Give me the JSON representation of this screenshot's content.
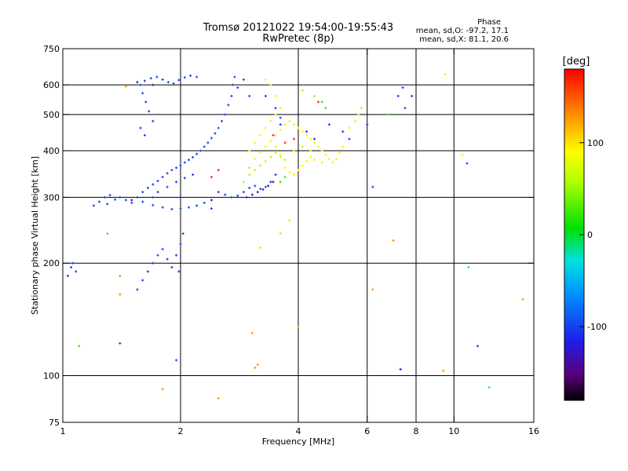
{
  "header": {
    "title_line1": "Tromsø 20121022 19:54:00-19:55:43",
    "title_line2": "RwPretec (8p)",
    "stats_title": "Phase",
    "stats_o": "mean, sd,O: -97.2, 17.1",
    "stats_x": "mean, sd,X:  81.1, 20.6"
  },
  "colorbar": {
    "unit_label": "[deg]",
    "ticks": [
      {
        "label": "100",
        "value": 100
      },
      {
        "label": "0",
        "value": 0
      },
      {
        "label": "-100",
        "value": -100
      }
    ],
    "range": [
      -180,
      180
    ]
  },
  "chart_data": {
    "type": "scatter",
    "xlabel": "Frequency [MHz]",
    "ylabel": "Stationary phase Virtual Height [km]",
    "xscale": "log",
    "yscale": "log",
    "xlim": [
      1,
      16
    ],
    "ylim": [
      75,
      750
    ],
    "x_ticks": [
      {
        "value": 1,
        "label": "1"
      },
      {
        "value": 2,
        "label": "2"
      },
      {
        "value": 4,
        "label": "4"
      },
      {
        "value": 6,
        "label": "6"
      },
      {
        "value": 8,
        "label": "8"
      },
      {
        "value": 10,
        "label": "10"
      },
      {
        "value": 16,
        "label": "16"
      }
    ],
    "y_ticks": [
      {
        "value": 75,
        "label": "75"
      },
      {
        "value": 100,
        "label": "100"
      },
      {
        "value": 200,
        "label": "200"
      },
      {
        "value": 300,
        "label": "300"
      },
      {
        "value": 400,
        "label": "400"
      },
      {
        "value": 500,
        "label": "500"
      },
      {
        "value": 600,
        "label": "600"
      },
      {
        "value": 750,
        "label": "750"
      }
    ],
    "x_grid": [
      2,
      4,
      6,
      8,
      10
    ],
    "y_grid": [
      100,
      200,
      300,
      400,
      500,
      600
    ],
    "series": [
      {
        "phase": -100,
        "points": [
          [
            1.05,
            195
          ],
          [
            1.08,
            190
          ],
          [
            1.03,
            185
          ],
          [
            1.06,
            200
          ],
          [
            1.2,
            285
          ],
          [
            1.24,
            292
          ],
          [
            1.28,
            300
          ],
          [
            1.32,
            304
          ],
          [
            1.36,
            296
          ],
          [
            1.3,
            288
          ],
          [
            1.4,
            300
          ],
          [
            1.45,
            295
          ],
          [
            1.5,
            290
          ],
          [
            1.55,
            300
          ],
          [
            1.6,
            310
          ],
          [
            1.65,
            318
          ],
          [
            1.7,
            325
          ],
          [
            1.75,
            332
          ],
          [
            1.8,
            340
          ],
          [
            1.85,
            348
          ],
          [
            1.9,
            355
          ],
          [
            1.95,
            360
          ],
          [
            2.0,
            365
          ],
          [
            2.05,
            372
          ],
          [
            2.1,
            378
          ],
          [
            2.15,
            384
          ],
          [
            2.2,
            392
          ],
          [
            2.25,
            400
          ],
          [
            2.3,
            410
          ],
          [
            2.35,
            420
          ],
          [
            2.4,
            432
          ],
          [
            2.45,
            445
          ],
          [
            2.5,
            460
          ],
          [
            2.55,
            480
          ],
          [
            2.6,
            500
          ],
          [
            2.65,
            530
          ],
          [
            2.7,
            560
          ],
          [
            2.72,
            600
          ],
          [
            2.75,
            630
          ],
          [
            2.3,
            290
          ],
          [
            2.2,
            285
          ],
          [
            2.1,
            282
          ],
          [
            2.0,
            280
          ],
          [
            1.9,
            279
          ],
          [
            1.8,
            282
          ],
          [
            1.7,
            286
          ],
          [
            1.6,
            292
          ],
          [
            1.55,
            170
          ],
          [
            1.6,
            180
          ],
          [
            1.65,
            190
          ],
          [
            1.7,
            200
          ],
          [
            1.75,
            210
          ],
          [
            1.8,
            218
          ],
          [
            1.85,
            205
          ],
          [
            1.9,
            195
          ],
          [
            1.95,
            210
          ],
          [
            2.0,
            225
          ],
          [
            2.03,
            240
          ],
          [
            1.98,
            190
          ],
          [
            1.58,
            600
          ],
          [
            1.62,
            615
          ],
          [
            1.68,
            625
          ],
          [
            1.74,
            630
          ],
          [
            1.8,
            620
          ],
          [
            1.86,
            610
          ],
          [
            1.92,
            605
          ],
          [
            1.98,
            618
          ],
          [
            2.05,
            628
          ],
          [
            2.12,
            635
          ],
          [
            2.2,
            630
          ],
          [
            1.6,
            570
          ],
          [
            1.63,
            540
          ],
          [
            1.66,
            510
          ],
          [
            1.7,
            480
          ],
          [
            1.58,
            460
          ],
          [
            1.62,
            440
          ],
          [
            1.7,
            300
          ],
          [
            1.75,
            310
          ],
          [
            1.85,
            320
          ],
          [
            1.95,
            330
          ],
          [
            2.05,
            338
          ],
          [
            2.15,
            345
          ],
          [
            2.5,
            310
          ],
          [
            2.6,
            305
          ],
          [
            2.7,
            300
          ],
          [
            2.8,
            303
          ],
          [
            2.9,
            310
          ],
          [
            3.0,
            318
          ],
          [
            3.1,
            322
          ],
          [
            3.2,
            316
          ],
          [
            3.3,
            320
          ],
          [
            3.4,
            330
          ],
          [
            3.5,
            345
          ],
          [
            1.4,
            122
          ],
          [
            1.95,
            110
          ],
          [
            2.4,
            280
          ],
          [
            3.5,
            520
          ],
          [
            3.6,
            470
          ],
          [
            3.3,
            560
          ],
          [
            2.8,
            590
          ],
          [
            2.9,
            620
          ],
          [
            3.0,
            560
          ],
          [
            3.6,
            490
          ],
          [
            4.2,
            450
          ],
          [
            4.4,
            430
          ],
          [
            4.8,
            470
          ],
          [
            5.2,
            450
          ],
          [
            5.4,
            430
          ],
          [
            6.0,
            470
          ],
          [
            6.2,
            320
          ],
          [
            7.2,
            560
          ],
          [
            7.4,
            590
          ],
          [
            7.5,
            520
          ],
          [
            7.8,
            560
          ],
          [
            10.8,
            370
          ],
          [
            11.5,
            120
          ]
        ]
      },
      {
        "phase": -130,
        "points": [
          [
            2.95,
            300
          ],
          [
            3.05,
            305
          ],
          [
            3.15,
            310
          ],
          [
            3.25,
            315
          ],
          [
            3.35,
            322
          ],
          [
            3.45,
            330
          ],
          [
            1.5,
            295
          ],
          [
            1.55,
            610
          ],
          [
            1.7,
            600
          ],
          [
            2.0,
            300
          ],
          [
            2.4,
            295
          ],
          [
            7.3,
            104
          ]
        ]
      },
      {
        "phase": 95,
        "points": [
          [
            3.1,
            380
          ],
          [
            3.2,
            395
          ],
          [
            3.3,
            410
          ],
          [
            3.4,
            425
          ],
          [
            3.5,
            440
          ],
          [
            3.6,
            455
          ],
          [
            3.7,
            470
          ],
          [
            3.8,
            480
          ],
          [
            3.9,
            470
          ],
          [
            4.0,
            460
          ],
          [
            4.1,
            450
          ],
          [
            4.2,
            440
          ],
          [
            4.3,
            430
          ],
          [
            4.4,
            420
          ],
          [
            4.5,
            410
          ],
          [
            4.6,
            400
          ],
          [
            4.7,
            390
          ],
          [
            4.8,
            380
          ],
          [
            4.9,
            372
          ],
          [
            5.0,
            380
          ],
          [
            5.1,
            395
          ],
          [
            5.2,
            410
          ],
          [
            3.0,
            400
          ],
          [
            3.1,
            420
          ],
          [
            3.2,
            440
          ],
          [
            3.3,
            460
          ],
          [
            3.4,
            480
          ],
          [
            3.5,
            500
          ],
          [
            3.6,
            520
          ],
          [
            3.5,
            560
          ],
          [
            3.4,
            600
          ],
          [
            3.3,
            620
          ],
          [
            3.7,
            360
          ],
          [
            3.8,
            350
          ],
          [
            3.9,
            345
          ],
          [
            4.0,
            355
          ],
          [
            4.1,
            365
          ],
          [
            4.2,
            375
          ],
          [
            4.3,
            385
          ],
          [
            4.4,
            378
          ],
          [
            4.6,
            372
          ],
          [
            5.4,
            460
          ],
          [
            5.6,
            480
          ],
          [
            5.7,
            500
          ],
          [
            9.5,
            640
          ],
          [
            10.5,
            390
          ],
          [
            3.5,
            410
          ],
          [
            3.6,
            390
          ]
        ]
      },
      {
        "phase": 55,
        "points": [
          [
            3.0,
            360
          ],
          [
            3.1,
            355
          ],
          [
            3.2,
            365
          ],
          [
            3.3,
            375
          ],
          [
            3.4,
            385
          ],
          [
            3.5,
            395
          ],
          [
            3.6,
            385
          ],
          [
            3.7,
            378
          ],
          [
            3.9,
            400
          ],
          [
            4.1,
            410
          ],
          [
            4.3,
            400
          ],
          [
            2.9,
            330
          ],
          [
            3.0,
            345
          ],
          [
            3.2,
            220
          ],
          [
            3.6,
            240
          ],
          [
            3.8,
            260
          ],
          [
            4.1,
            580
          ],
          [
            4.4,
            560
          ],
          [
            5.8,
            520
          ]
        ]
      },
      {
        "phase": 20,
        "points": [
          [
            4.6,
            540
          ],
          [
            4.7,
            520
          ],
          [
            3.6,
            330
          ],
          [
            3.7,
            340
          ],
          [
            1.4,
            185
          ],
          [
            1.1,
            120
          ],
          [
            6.8,
            500
          ]
        ]
      },
      {
        "phase": 130,
        "points": [
          [
            1.45,
            595
          ],
          [
            1.8,
            92
          ],
          [
            3.1,
            105
          ],
          [
            3.15,
            107
          ],
          [
            4.0,
            135
          ],
          [
            2.5,
            87
          ],
          [
            7.0,
            230
          ],
          [
            9.4,
            103
          ],
          [
            1.4,
            165
          ],
          [
            3.05,
            130
          ],
          [
            6.2,
            170
          ],
          [
            15.0,
            160
          ]
        ]
      },
      {
        "phase": 165,
        "points": [
          [
            3.45,
            440
          ],
          [
            3.7,
            420
          ],
          [
            3.9,
            430
          ],
          [
            2.4,
            340
          ],
          [
            2.5,
            355
          ],
          [
            4.5,
            540
          ]
        ]
      },
      {
        "phase": -25,
        "points": [
          [
            10.9,
            195
          ],
          [
            12.3,
            93
          ],
          [
            1.3,
            240
          ]
        ]
      }
    ]
  }
}
